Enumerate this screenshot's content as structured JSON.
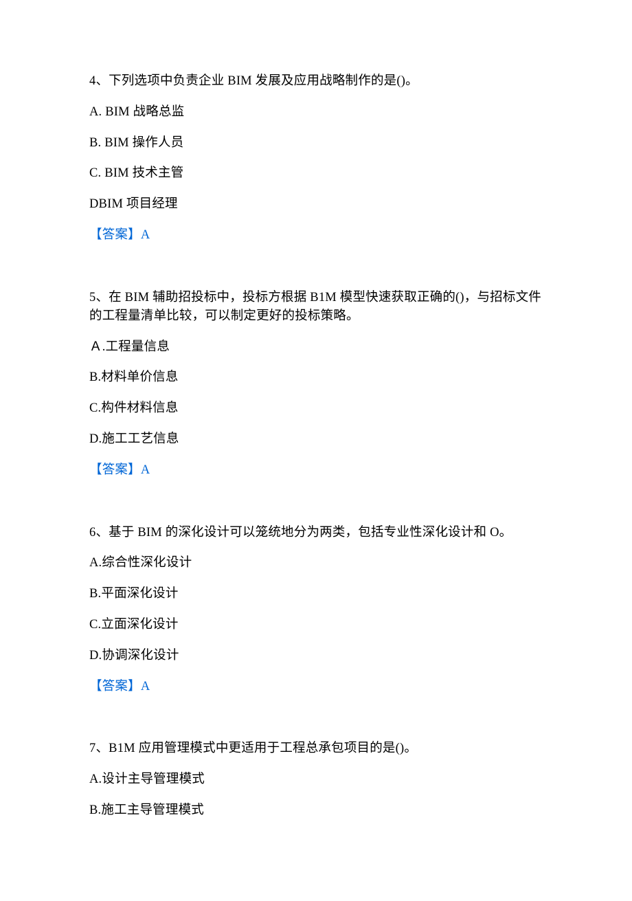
{
  "text_color": "#000000",
  "answer_color": "#0066d6",
  "background_color": "#ffffff",
  "font_family": "SimSun",
  "font_size_pt": 14,
  "questions": [
    {
      "number": "4、",
      "stem": "下列选项中负责企业 BIM 发展及应用战略制作的是()。",
      "options": {
        "A": "A.  BIM 战略总监",
        "B": "B.  BIM 操作人员",
        "C": "C.  BIM 技术主管",
        "D": "DBIM 项目经理"
      },
      "answer_label": "【答案】",
      "answer_value": "A"
    },
    {
      "number": "5、",
      "stem": "在 BIM 辅助招投标中，投标方根据 B1M 模型快速获取正确的()，与招标文件的工程量清单比较，可以制定更好的投标策略。",
      "options": {
        "A": "Ａ.工程量信息",
        "B": "B.材料单价信息",
        "C": "C.构件材料信息",
        "D": "D.施工工艺信息"
      },
      "answer_label": "【答案】",
      "answer_value": "A"
    },
    {
      "number": "6、",
      "stem": "基于 BIM 的深化设计可以笼统地分为两类，包括专业性深化设计和 O。",
      "options": {
        "A": "A.综合性深化设计",
        "B": "B.平面深化设计",
        "C": "C.立面深化设计",
        "D": "D.协调深化设计"
      },
      "answer_label": "【答案】",
      "answer_value": "A"
    },
    {
      "number": "7、",
      "stem": "B1M 应用管理模式中更适用于工程总承包项目的是()。",
      "options": {
        "A": "A.设计主导管理模式",
        "B": "B.施工主导管理模式"
      },
      "answer_label": null,
      "answer_value": null
    }
  ]
}
